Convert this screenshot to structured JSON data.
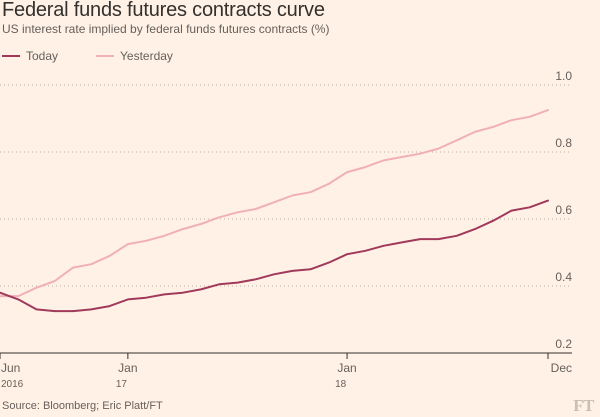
{
  "title": "Federal funds futures contracts curve",
  "subtitle": "US interest rate implied by federal funds futures contracts (%)",
  "source": "Source: Bloomberg; Eric Platt/FT",
  "logo": "FT",
  "colors": {
    "background": "#fff1e5",
    "today": "#a0395a",
    "yesterday": "#f0b0b6",
    "grid": "#b8aea6",
    "text": "#66605c"
  },
  "chart_data": {
    "type": "line",
    "title": "Federal funds futures contracts curve",
    "subtitle": "US interest rate implied by federal funds futures contracts (%)",
    "xlabel": "",
    "ylabel": "",
    "x": [
      "Jun 2016",
      "Jul 2016",
      "Aug 2016",
      "Sep 2016",
      "Oct 2016",
      "Nov 2016",
      "Dec 2016",
      "Jan 2017",
      "Feb 2017",
      "Mar 2017",
      "Apr 2017",
      "May 2017",
      "Jun 2017",
      "Jul 2017",
      "Aug 2017",
      "Sep 2017",
      "Oct 2017",
      "Nov 2017",
      "Dec 2017",
      "Jan 2018",
      "Feb 2018",
      "Mar 2018",
      "Apr 2018",
      "May 2018",
      "Jun 2018",
      "Jul 2018",
      "Aug 2018",
      "Sep 2018",
      "Oct 2018",
      "Nov 2018",
      "Dec 2018"
    ],
    "x_ticks": [
      {
        "label": "Jun",
        "sublabel": "2016",
        "index": 0
      },
      {
        "label": "Jan",
        "sublabel": "17",
        "index": 7
      },
      {
        "label": "Jan",
        "sublabel": "18",
        "index": 19
      },
      {
        "label": "Dec",
        "sublabel": "",
        "index": 30
      }
    ],
    "y_ticks": [
      "0.2",
      "0.4",
      "0.6",
      "0.8",
      "1.0"
    ],
    "ylim": [
      0.2,
      1.0
    ],
    "grid": true,
    "legend_position": "top-left",
    "series": [
      {
        "name": "Today",
        "color": "#a0395a",
        "values": [
          0.38,
          0.36,
          0.33,
          0.325,
          0.325,
          0.33,
          0.34,
          0.36,
          0.365,
          0.375,
          0.38,
          0.39,
          0.405,
          0.41,
          0.42,
          0.435,
          0.445,
          0.45,
          0.47,
          0.495,
          0.505,
          0.52,
          0.53,
          0.54,
          0.54,
          0.55,
          0.57,
          0.595,
          0.625,
          0.635,
          0.655
        ]
      },
      {
        "name": "Yesterday",
        "color": "#f0b0b6",
        "values": [
          0.37,
          0.37,
          0.395,
          0.415,
          0.455,
          0.465,
          0.49,
          0.525,
          0.535,
          0.55,
          0.57,
          0.585,
          0.605,
          0.62,
          0.63,
          0.65,
          0.67,
          0.68,
          0.705,
          0.74,
          0.755,
          0.775,
          0.785,
          0.795,
          0.81,
          0.835,
          0.86,
          0.875,
          0.895,
          0.905,
          0.925
        ]
      }
    ]
  }
}
